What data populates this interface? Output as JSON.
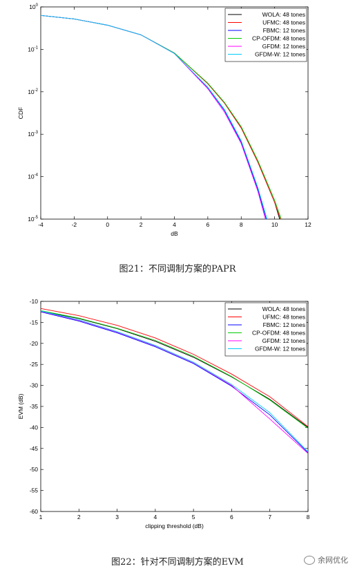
{
  "captions": {
    "fig21": "图21：不同调制方案的PAPR",
    "fig22": "图22：针对不同调制方案的EVM"
  },
  "watermark": {
    "text": "余网优化",
    "icon": "wechat-icon"
  },
  "chart_data": [
    {
      "type": "line",
      "ylog": true,
      "xlabel": "dB",
      "ylabel": "CDF",
      "xlim": [
        -4,
        12
      ],
      "ylim": [
        1e-05,
        1
      ],
      "xticks": [
        -4,
        -2,
        0,
        2,
        4,
        6,
        8,
        10,
        12
      ],
      "xtick_labels": [
        "-4",
        "-2",
        "0",
        "2",
        "4",
        "6",
        "8",
        "10",
        "12"
      ],
      "yticks": [
        1,
        0.1,
        0.01,
        0.001,
        0.0001,
        1e-05
      ],
      "ytick_labels": [
        {
          "base": "10",
          "exp": "0"
        },
        {
          "base": "10",
          "exp": "-1"
        },
        {
          "base": "10",
          "exp": "-2"
        },
        {
          "base": "10",
          "exp": "-3"
        },
        {
          "base": "10",
          "exp": "-4"
        },
        {
          "base": "10",
          "exp": "-5"
        }
      ],
      "grid": false,
      "legend_position": "top-right",
      "series": [
        {
          "name": "WOLA: 48 tones",
          "color": "#000000",
          "x": [
            -4,
            -2,
            0,
            2,
            4,
            6,
            7,
            8,
            9,
            10,
            10.3
          ],
          "y": [
            0.63,
            0.52,
            0.37,
            0.22,
            0.082,
            0.0155,
            0.0054,
            0.0014,
            0.00022,
            2.5e-05,
            1e-05
          ]
        },
        {
          "name": "UFMC: 48 tones",
          "color": "#ff0000",
          "x": [
            -4,
            -2,
            0,
            2,
            4,
            6,
            7,
            8,
            9,
            10,
            10.35
          ],
          "y": [
            0.63,
            0.52,
            0.37,
            0.22,
            0.082,
            0.0155,
            0.0054,
            0.0014,
            0.00022,
            2.5e-05,
            1e-05
          ]
        },
        {
          "name": "FBMC: 12 tones",
          "color": "#0000ff",
          "x": [
            -4,
            -2,
            0,
            2,
            4,
            6,
            7,
            8,
            9,
            9.5
          ],
          "y": [
            0.63,
            0.52,
            0.37,
            0.22,
            0.08,
            0.0125,
            0.0036,
            0.00065,
            5e-05,
            1e-05
          ]
        },
        {
          "name": "CP-OFDM: 48 tones",
          "color": "#00cc00",
          "x": [
            -4,
            -2,
            0,
            2,
            4,
            6,
            7,
            8,
            9,
            10,
            10.4
          ],
          "y": [
            0.63,
            0.52,
            0.37,
            0.22,
            0.082,
            0.016,
            0.0056,
            0.0015,
            0.00024,
            2.8e-05,
            1e-05
          ]
        },
        {
          "name": "GFDM: 12 tones",
          "color": "#ff00ff",
          "x": [
            -4,
            -2,
            0,
            2,
            4,
            6,
            7,
            8,
            9,
            9.45
          ],
          "y": [
            0.63,
            0.52,
            0.37,
            0.22,
            0.08,
            0.0118,
            0.0033,
            0.0006,
            4.5e-05,
            1e-05
          ]
        },
        {
          "name": "GFDM-W: 12 tones",
          "color": "#00ccff",
          "x": [
            -4,
            -2,
            0,
            2,
            4,
            6,
            7,
            8,
            9,
            9.55
          ],
          "y": [
            0.63,
            0.52,
            0.37,
            0.22,
            0.08,
            0.0128,
            0.0038,
            0.0007,
            5.5e-05,
            1e-05
          ]
        }
      ]
    },
    {
      "type": "line",
      "xlabel": "clipping threshold (dB)",
      "ylabel": "EVM (dB)",
      "xlim": [
        1,
        8
      ],
      "ylim": [
        -60,
        -10
      ],
      "xticks": [
        1,
        2,
        3,
        4,
        5,
        6,
        7,
        8
      ],
      "yticks": [
        -10,
        -15,
        -20,
        -25,
        -30,
        -35,
        -40,
        -45,
        -50,
        -55,
        -60
      ],
      "grid": false,
      "legend_position": "top-right",
      "x": [
        1,
        2,
        3,
        4,
        5,
        6,
        7,
        8
      ],
      "series": [
        {
          "name": "WOLA: 48 tones",
          "color": "#000000",
          "values": [
            -12.3,
            -14.1,
            -16.5,
            -19.5,
            -23.3,
            -28.0,
            -33.3,
            -40.0
          ]
        },
        {
          "name": "UFMC: 48 tones",
          "color": "#ff0000",
          "values": [
            -11.7,
            -13.4,
            -15.7,
            -18.7,
            -22.6,
            -27.3,
            -32.7,
            -39.8
          ]
        },
        {
          "name": "FBMC: 12 tones",
          "color": "#0000ff",
          "values": [
            -12.5,
            -14.7,
            -17.5,
            -20.8,
            -24.8,
            -30.2,
            -37.0,
            -46.0
          ]
        },
        {
          "name": "CP-OFDM: 48 tones",
          "color": "#00cc00",
          "values": [
            -12.2,
            -14.0,
            -16.4,
            -19.3,
            -23.1,
            -27.9,
            -33.5,
            -40.2
          ]
        },
        {
          "name": "GFDM: 12 tones",
          "color": "#ff00ff",
          "values": [
            -12.4,
            -14.5,
            -17.3,
            -20.6,
            -24.6,
            -30.0,
            -38.0,
            -46.2
          ]
        },
        {
          "name": "GFDM-W: 12 tones",
          "color": "#00ccff",
          "values": [
            -12.3,
            -14.4,
            -17.2,
            -20.5,
            -24.5,
            -29.8,
            -36.5,
            -45.8
          ]
        }
      ]
    }
  ]
}
